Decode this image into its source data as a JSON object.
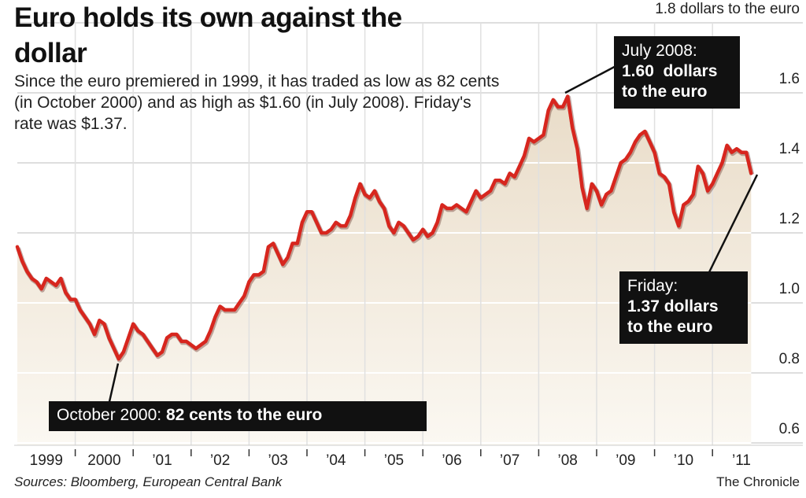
{
  "chart_data": {
    "type": "line",
    "title": "Euro holds its own against the dollar",
    "subtitle": "Since the euro premiered in 1999, it has traded as low as 82 cents (in October 2000) and as high as $1.60 (in July 2008). Friday's rate was $1.37.",
    "categories": [
      "1999",
      "2000",
      "’01",
      "’02",
      "’03",
      "’04",
      "’05",
      "’06",
      "’07",
      "’08",
      "’09",
      "’10",
      "’11"
    ],
    "values": [
      [
        1.16,
        1.12,
        1.09,
        1.07,
        1.06,
        1.04,
        1.07,
        1.06,
        1.05,
        1.07,
        1.03,
        1.01
      ],
      [
        1.01,
        0.98,
        0.96,
        0.94,
        0.91,
        0.95,
        0.94,
        0.9,
        0.87,
        0.84,
        0.86,
        0.9
      ],
      [
        0.94,
        0.92,
        0.91,
        0.89,
        0.87,
        0.85,
        0.86,
        0.9,
        0.91,
        0.91,
        0.89,
        0.89
      ],
      [
        0.88,
        0.87,
        0.88,
        0.89,
        0.92,
        0.96,
        0.99,
        0.98,
        0.98,
        0.98,
        1.0,
        1.02
      ],
      [
        1.06,
        1.08,
        1.08,
        1.09,
        1.16,
        1.17,
        1.14,
        1.11,
        1.13,
        1.17,
        1.17,
        1.23
      ],
      [
        1.26,
        1.26,
        1.23,
        1.2,
        1.2,
        1.21,
        1.23,
        1.22,
        1.22,
        1.25,
        1.3,
        1.34
      ],
      [
        1.31,
        1.3,
        1.32,
        1.29,
        1.27,
        1.22,
        1.2,
        1.23,
        1.22,
        1.2,
        1.18,
        1.19
      ],
      [
        1.21,
        1.19,
        1.2,
        1.23,
        1.28,
        1.27,
        1.27,
        1.28,
        1.27,
        1.26,
        1.29,
        1.32
      ],
      [
        1.3,
        1.31,
        1.32,
        1.35,
        1.35,
        1.34,
        1.37,
        1.36,
        1.39,
        1.42,
        1.47,
        1.46
      ],
      [
        1.47,
        1.48,
        1.55,
        1.58,
        1.56,
        1.56,
        1.59,
        1.5,
        1.44,
        1.33,
        1.27,
        1.34
      ],
      [
        1.32,
        1.28,
        1.31,
        1.32,
        1.36,
        1.4,
        1.41,
        1.43,
        1.46,
        1.48,
        1.49,
        1.46
      ],
      [
        1.43,
        1.37,
        1.36,
        1.34,
        1.26,
        1.22,
        1.28,
        1.29,
        1.31,
        1.39,
        1.37,
        1.32
      ],
      [
        1.34,
        1.37,
        1.4,
        1.45,
        1.43,
        1.44,
        1.43,
        1.43,
        1.37
      ]
    ],
    "color": "#d7261e",
    "ylim": [
      0.6,
      1.8
    ],
    "yticks": [
      0.6,
      0.8,
      {
        "value": 1,
        "label": "1.0"
      },
      1.2,
      1.4,
      1.6,
      {
        "value": 1.8,
        "label": "1.8 dollars to the euro"
      }
    ],
    "grid": true,
    "annotations": [
      {
        "label": "October 2000:",
        "lines": [
          "82 cents to the euro"
        ]
      },
      {
        "label": "July 2008:",
        "lines": [
          "1.60  dollars",
          "to the euro"
        ]
      },
      {
        "label": "Friday:",
        "lines": [
          "1.37 dollars",
          "to the euro"
        ]
      }
    ],
    "source": "Sources: Bloomberg, European Central Bank",
    "credit": "The Chronicle"
  }
}
